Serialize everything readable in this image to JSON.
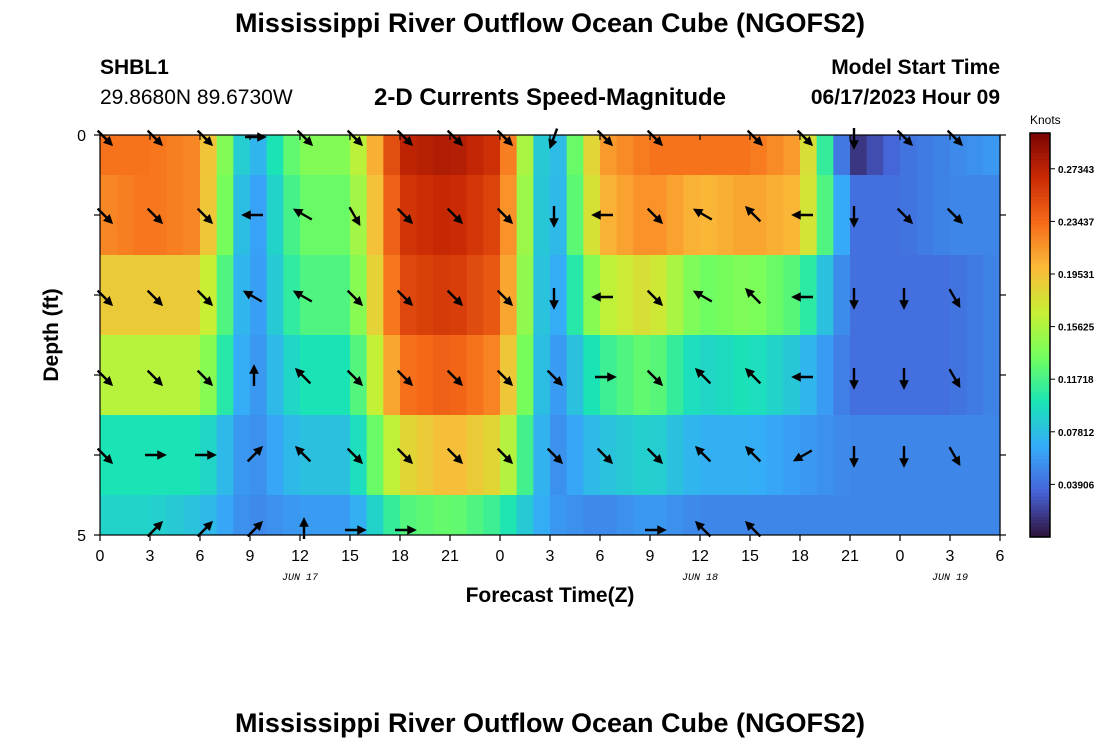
{
  "page": {
    "title": "Mississippi River Outflow Ocean Cube (NGOFS2)",
    "title_repeat": "Mississippi River Outflow Ocean Cube (NGOFS2)",
    "station_id": "SHBL1",
    "station_coords": "29.8680N  89.6730W",
    "subtitle": "2-D Currents Speed-Magnitude",
    "start_label": "Model Start Time",
    "start_value": "06/17/2023 Hour 09"
  },
  "chart_data": {
    "type": "heatmap",
    "title": "2-D Currents Speed-Magnitude",
    "xlabel": "Forecast Time(Z)",
    "ylabel": "Depth (ft)",
    "x_ticks": [
      "0",
      "3",
      "6",
      "9",
      "12",
      "15",
      "18",
      "21",
      "0",
      "3",
      "6",
      "9",
      "12",
      "15",
      "18",
      "21",
      "0",
      "3",
      "6"
    ],
    "x_range_hours": [
      0,
      54
    ],
    "y_ticks": [
      "0",
      "5"
    ],
    "y_range": [
      0,
      5
    ],
    "date_labels": [
      {
        "text": "JUN 17",
        "hour": 12
      },
      {
        "text": "JUN 18",
        "hour": 36
      },
      {
        "text": "JUN 19",
        "hour": 51
      }
    ],
    "colorbar": {
      "unit": "Knots",
      "ticks": [
        "0.27343",
        "0.23437",
        "0.19531",
        "0.15625",
        "0.11718",
        "0.07812",
        "0.03906"
      ],
      "tick_values": [
        0.27343,
        0.23437,
        0.19531,
        0.15625,
        0.11718,
        0.07812,
        0.03906
      ],
      "range": [
        0.0,
        0.3
      ],
      "colors": [
        "#30123b",
        "#4662d7",
        "#36aaf9",
        "#1ae4b6",
        "#72fe5e",
        "#c8ef34",
        "#faba39",
        "#f66b19",
        "#ca2a04",
        "#7a0403"
      ]
    },
    "depth_layers": [
      "0.0-0.5",
      "0.5-1.5",
      "1.5-2.5",
      "2.5-3.5",
      "3.5-4.5",
      "4.5-5.0"
    ],
    "time_hours": [
      0,
      3,
      6,
      9,
      12,
      15,
      18,
      21,
      24,
      27,
      30,
      33,
      36,
      39,
      42,
      45,
      48,
      51,
      54
    ],
    "speed_knots": [
      [
        0.23,
        0.23,
        0.22,
        0.06,
        0.14,
        0.14,
        0.27,
        0.28,
        0.26,
        0.05,
        0.21,
        0.23,
        0.23,
        0.23,
        0.21,
        0.01,
        0.04,
        0.05,
        0.06
      ],
      [
        0.22,
        0.23,
        0.22,
        0.05,
        0.13,
        0.13,
        0.26,
        0.27,
        0.25,
        0.05,
        0.2,
        0.22,
        0.2,
        0.21,
        0.2,
        0.04,
        0.04,
        0.05,
        0.05
      ],
      [
        0.19,
        0.19,
        0.19,
        0.05,
        0.12,
        0.12,
        0.25,
        0.26,
        0.24,
        0.05,
        0.16,
        0.18,
        0.13,
        0.14,
        0.12,
        0.04,
        0.04,
        0.04,
        0.05
      ],
      [
        0.16,
        0.16,
        0.16,
        0.05,
        0.1,
        0.1,
        0.23,
        0.24,
        0.22,
        0.05,
        0.11,
        0.13,
        0.09,
        0.1,
        0.08,
        0.04,
        0.04,
        0.04,
        0.05
      ],
      [
        0.1,
        0.1,
        0.1,
        0.05,
        0.08,
        0.08,
        0.18,
        0.2,
        0.18,
        0.05,
        0.08,
        0.09,
        0.07,
        0.07,
        0.06,
        0.05,
        0.05,
        0.05,
        0.05
      ],
      [
        0.09,
        0.09,
        0.08,
        0.05,
        0.06,
        0.06,
        0.12,
        0.13,
        0.11,
        0.06,
        0.05,
        0.06,
        0.05,
        0.05,
        0.05,
        0.05,
        0.05,
        0.05,
        0.05
      ]
    ],
    "arrow_depth_index": [
      0,
      1,
      2,
      3,
      4,
      5
    ],
    "arrow_direction_deg": [
      [
        135,
        135,
        135,
        90,
        135,
        135,
        135,
        135,
        135,
        200,
        135,
        135,
        null,
        135,
        135,
        180,
        135,
        135,
        null
      ],
      [
        135,
        135,
        135,
        270,
        300,
        150,
        135,
        135,
        135,
        180,
        270,
        135,
        300,
        315,
        270,
        180,
        135,
        135,
        null
      ],
      [
        135,
        135,
        135,
        300,
        300,
        135,
        135,
        135,
        135,
        180,
        270,
        135,
        300,
        315,
        270,
        180,
        180,
        150,
        null
      ],
      [
        135,
        135,
        135,
        0,
        315,
        135,
        135,
        135,
        135,
        135,
        90,
        135,
        315,
        315,
        270,
        180,
        180,
        150,
        null
      ],
      [
        135,
        90,
        90,
        45,
        315,
        135,
        135,
        135,
        135,
        135,
        135,
        135,
        315,
        315,
        240,
        180,
        180,
        150,
        null
      ],
      [
        null,
        45,
        45,
        45,
        0,
        90,
        90,
        null,
        null,
        null,
        null,
        90,
        315,
        315,
        null,
        null,
        null,
        null,
        null
      ]
    ],
    "legend": "colorbar-right",
    "grid": false
  }
}
